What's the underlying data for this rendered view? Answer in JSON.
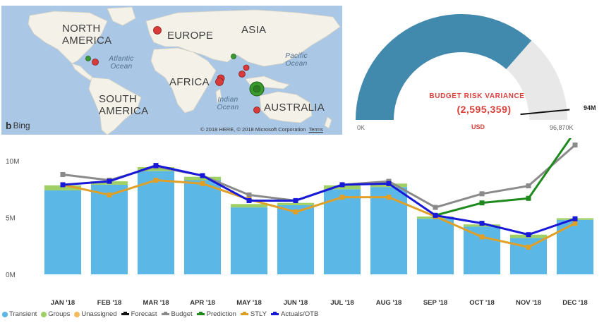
{
  "map": {
    "continents": [
      "NORTH AMERICA",
      "EUROPE",
      "ASIA",
      "AFRICA",
      "SOUTH AMERICA",
      "AUSTRALIA"
    ],
    "oceans": [
      "Atlantic Ocean",
      "Pacific Ocean",
      "Indian Ocean"
    ],
    "attribution": "Bing",
    "copyright": "© 2018 HERE, © 2018 Microsoft Corporation",
    "terms": "Terms",
    "colors": {
      "red": "#d93a3a",
      "green": "#3a9a2e",
      "land": "#f4f1e8",
      "water": "#aac8e6"
    }
  },
  "gauge": {
    "title": "BUDGET RISK VARIANCE",
    "value": "(2,595,359)",
    "unit": "USD",
    "min_label": "0K",
    "max_label": "96,870K",
    "target_label": "94M",
    "fill_fraction": 0.73,
    "target_fraction": 0.97,
    "colors": {
      "fill": "#4189ad",
      "track": "#e8e8e8",
      "title": "#d9403a"
    }
  },
  "chart_data": {
    "type": "bar",
    "categories": [
      "JAN '18",
      "FEB '18",
      "MAR '18",
      "APR '18",
      "MAY '18",
      "JUN '18",
      "JUL '18",
      "AUG '18",
      "SEP '18",
      "OCT '18",
      "NOV '18",
      "DEC '18"
    ],
    "y_ticks": [
      "0M",
      "5M",
      "10M"
    ],
    "ylim": [
      0,
      12000000
    ],
    "stacked_series": [
      {
        "name": "Transient",
        "color": "#5bb8e6",
        "values": [
          7400000,
          7900000,
          9100000,
          8300000,
          5900000,
          6100000,
          7500000,
          7700000,
          4900000,
          4200000,
          3200000,
          4800000
        ]
      },
      {
        "name": "Groups",
        "color": "#9fd065",
        "values": [
          450000,
          300000,
          350000,
          300000,
          300000,
          200000,
          350000,
          300000,
          200000,
          200000,
          300000,
          150000
        ]
      },
      {
        "name": "Unassigned",
        "color": "#f5bb5a",
        "values": [
          0,
          0,
          0,
          0,
          0,
          0,
          0,
          0,
          0,
          0,
          0,
          0
        ]
      }
    ],
    "line_series": [
      {
        "name": "Forecast",
        "color": "#111111",
        "values": []
      },
      {
        "name": "Budget",
        "color": "#8a8a8a",
        "values": [
          8800000,
          8300000,
          9500000,
          8700000,
          7000000,
          6500000,
          7900000,
          8200000,
          5900000,
          7100000,
          7800000,
          11400000
        ]
      },
      {
        "name": "Prediction",
        "color": "#1e8a1e",
        "values": [
          null,
          null,
          null,
          null,
          null,
          null,
          null,
          null,
          5200000,
          6300000,
          6700000,
          12600000
        ]
      },
      {
        "name": "STLY",
        "color": "#e0a028",
        "values": [
          7900000,
          7000000,
          8300000,
          8000000,
          6600000,
          5500000,
          6800000,
          6800000,
          5100000,
          3300000,
          2400000,
          4500000
        ]
      },
      {
        "name": "Actuals/OTB",
        "color": "#1818d8",
        "values": [
          7900000,
          8200000,
          9600000,
          8700000,
          6500000,
          6500000,
          7900000,
          8000000,
          5200000,
          4500000,
          3500000,
          4900000
        ]
      }
    ],
    "legend": [
      {
        "label": "Transient",
        "kind": "dot",
        "color": "#5bb8e6"
      },
      {
        "label": "Groups",
        "kind": "dot",
        "color": "#9fd065"
      },
      {
        "label": "Unassigned",
        "kind": "dot",
        "color": "#f5bb5a"
      },
      {
        "label": "Forecast",
        "kind": "line",
        "color": "#111111"
      },
      {
        "label": "Budget",
        "kind": "line",
        "color": "#8a8a8a"
      },
      {
        "label": "Prediction",
        "kind": "line",
        "color": "#1e8a1e"
      },
      {
        "label": "STLY",
        "kind": "line",
        "color": "#e0a028"
      },
      {
        "label": "Actuals/OTB",
        "kind": "line",
        "color": "#1818d8"
      }
    ],
    "grid": false,
    "legend_position": "bottom-left"
  }
}
